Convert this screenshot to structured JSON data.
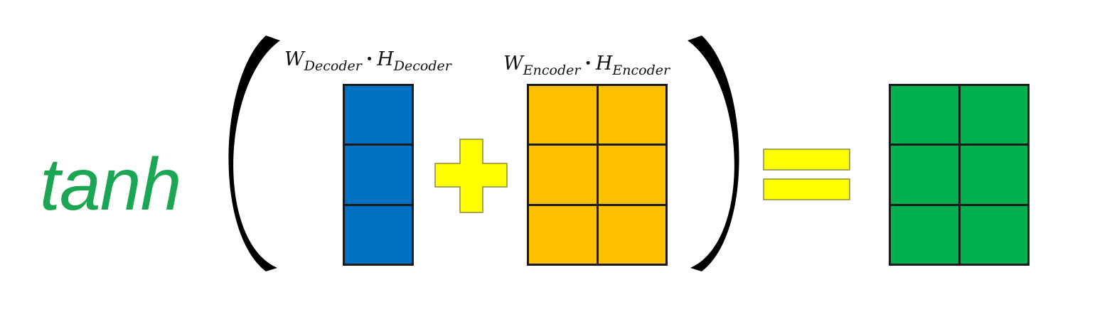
{
  "equation": {
    "function_name": "tanh",
    "decoder_term": {
      "w": "W",
      "w_sub": "Decoder",
      "dot": "·",
      "h": "H",
      "h_sub": "Decoder"
    },
    "encoder_term": {
      "w": "W",
      "w_sub": "Encoder",
      "dot": "·",
      "h": "H",
      "h_sub": "Encoder"
    }
  },
  "matrices": {
    "decoder": {
      "rows": 3,
      "cols": 1
    },
    "encoder": {
      "rows": 3,
      "cols": 2
    },
    "result": {
      "rows": 3,
      "cols": 2
    }
  },
  "colors": {
    "function_text": "#1aa653",
    "decoder_fill": "#0070c0",
    "encoder_fill": "#ffc000",
    "result_fill": "#00b050",
    "operator_fill": "#ffff00",
    "operator_stroke": "#8a8a3a",
    "bracket": "#000000",
    "grid_line": "#1b1b1b"
  }
}
